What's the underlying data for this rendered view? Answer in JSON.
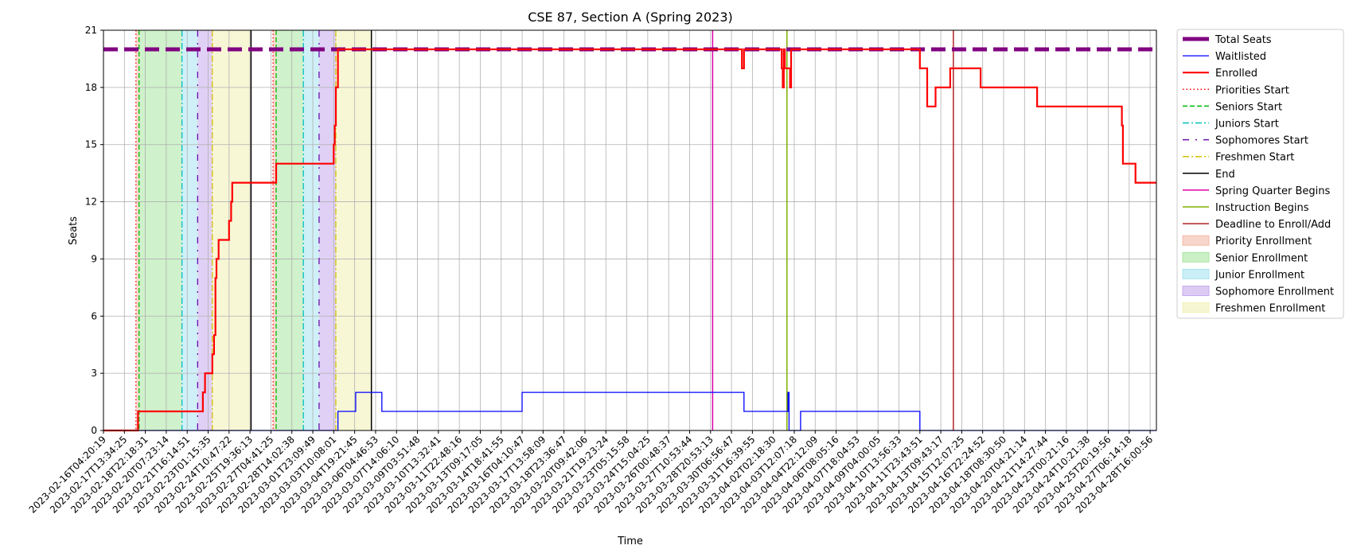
{
  "chart_data": {
    "type": "line",
    "title": "CSE 87, Section A (Spring 2023)",
    "xlabel": "Time",
    "ylabel": "Seats",
    "ylim": [
      0,
      21
    ],
    "yticks": [
      0,
      3,
      6,
      9,
      12,
      15,
      18,
      21
    ],
    "grid": true,
    "legend_position": "outside-right",
    "x_tick_labels": [
      "2023-02-16T04:20:19",
      "2023-02-17T13:34:25",
      "2023-02-18T22:18:31",
      "2023-02-20T07:23:14",
      "2023-02-21T16:14:51",
      "2023-02-23T01:15:35",
      "2023-02-24T10:47:22",
      "2023-02-25T19:36:13",
      "2023-02-27T04:41:25",
      "2023-02-28T14:02:38",
      "2023-03-01T23:09:49",
      "2023-03-03T10:08:01",
      "2023-03-04T19:21:45",
      "2023-03-06T04:46:53",
      "2023-03-07T14:06:10",
      "2023-03-09T03:51:48",
      "2023-03-10T13:32:41",
      "2023-03-11T22:48:16",
      "2023-03-13T09:17:05",
      "2023-03-14T18:41:55",
      "2023-03-16T04:10:47",
      "2023-03-17T13:58:09",
      "2023-03-18T23:36:47",
      "2023-03-20T09:42:06",
      "2023-03-21T19:23:24",
      "2023-03-23T05:15:58",
      "2023-03-24T15:04:25",
      "2023-03-26T00:48:37",
      "2023-03-27T10:53:44",
      "2023-03-28T20:53:13",
      "2023-03-30T06:56:47",
      "2023-03-31T16:39:55",
      "2023-04-02T02:18:30",
      "2023-04-03T12:07:18",
      "2023-04-04T22:12:09",
      "2023-04-06T08:05:16",
      "2023-04-07T18:04:53",
      "2023-04-09T04:00:05",
      "2023-04-10T13:56:33",
      "2023-04-11T23:43:51",
      "2023-04-13T09:43:17",
      "2023-04-15T12:07:25",
      "2023-04-16T22:24:52",
      "2023-04-18T08:30:50",
      "2023-04-20T04:21:14",
      "2023-04-21T14:27:44",
      "2023-04-23T00:21:16",
      "2023-04-24T10:21:38",
      "2023-04-25T20:19:56",
      "2023-04-27T06:14:18",
      "2023-04-28T16:00:56"
    ],
    "series": [
      {
        "name": "Total Seats",
        "color": "#800080",
        "style": "dashed-thick",
        "points": [
          [
            0,
            20
          ],
          [
            50.3,
            20
          ]
        ]
      },
      {
        "name": "Waitlisted",
        "color": "#0000ff",
        "style": "solid-thin",
        "points": [
          [
            0,
            0
          ],
          [
            11.2,
            0
          ],
          [
            11.2,
            1
          ],
          [
            12.05,
            1
          ],
          [
            12.05,
            2
          ],
          [
            13.3,
            2
          ],
          [
            13.3,
            1
          ],
          [
            20.0,
            1
          ],
          [
            20.0,
            2
          ],
          [
            30.6,
            2
          ],
          [
            30.6,
            1
          ],
          [
            32.7,
            1
          ],
          [
            32.7,
            2
          ],
          [
            32.75,
            2
          ],
          [
            32.75,
            0
          ],
          [
            33.3,
            0
          ],
          [
            33.3,
            1
          ],
          [
            39.0,
            1
          ],
          [
            39.0,
            0
          ],
          [
            50.3,
            0
          ]
        ]
      },
      {
        "name": "Enrolled",
        "color": "#ff0000",
        "style": "solid-thick",
        "points": [
          [
            0,
            0
          ],
          [
            1.65,
            0
          ],
          [
            1.65,
            1
          ],
          [
            4.75,
            1
          ],
          [
            4.75,
            2
          ],
          [
            4.85,
            2
          ],
          [
            4.85,
            3
          ],
          [
            5.2,
            3
          ],
          [
            5.2,
            4
          ],
          [
            5.28,
            4
          ],
          [
            5.28,
            5
          ],
          [
            5.35,
            5
          ],
          [
            5.35,
            8
          ],
          [
            5.4,
            8
          ],
          [
            5.4,
            9
          ],
          [
            5.5,
            9
          ],
          [
            5.5,
            10
          ],
          [
            6.0,
            10
          ],
          [
            6.0,
            11
          ],
          [
            6.1,
            11
          ],
          [
            6.1,
            12
          ],
          [
            6.15,
            12
          ],
          [
            6.15,
            13
          ],
          [
            8.25,
            13
          ],
          [
            8.25,
            14
          ],
          [
            11.0,
            14
          ],
          [
            11.0,
            15
          ],
          [
            11.05,
            15
          ],
          [
            11.05,
            16
          ],
          [
            11.1,
            16
          ],
          [
            11.1,
            18
          ],
          [
            11.2,
            18
          ],
          [
            11.2,
            20
          ],
          [
            30.5,
            20
          ],
          [
            30.5,
            19
          ],
          [
            30.6,
            19
          ],
          [
            30.6,
            20
          ],
          [
            32.4,
            20
          ],
          [
            32.4,
            19
          ],
          [
            32.45,
            19
          ],
          [
            32.45,
            18
          ],
          [
            32.5,
            18
          ],
          [
            32.5,
            20
          ],
          [
            32.55,
            20
          ],
          [
            32.55,
            19
          ],
          [
            32.8,
            19
          ],
          [
            32.8,
            18
          ],
          [
            32.85,
            18
          ],
          [
            32.85,
            20
          ],
          [
            39.0,
            20
          ],
          [
            39.0,
            19
          ],
          [
            39.35,
            19
          ],
          [
            39.35,
            17
          ],
          [
            39.75,
            17
          ],
          [
            39.75,
            18
          ],
          [
            40.45,
            18
          ],
          [
            40.45,
            19
          ],
          [
            41.9,
            19
          ],
          [
            41.9,
            18
          ],
          [
            44.6,
            18
          ],
          [
            44.6,
            17
          ],
          [
            48.65,
            17
          ],
          [
            48.65,
            16
          ],
          [
            48.7,
            16
          ],
          [
            48.7,
            14
          ],
          [
            49.3,
            14
          ],
          [
            49.3,
            13
          ],
          [
            50.3,
            13
          ]
        ]
      }
    ],
    "markers": [
      {
        "name": "Priorities Start",
        "color": "#ff0000",
        "style": "dotted",
        "x": [
          1.55,
          8.1
        ]
      },
      {
        "name": "Seniors Start",
        "color": "#00bb00",
        "style": "dashed",
        "x": [
          1.7,
          8.25
        ]
      },
      {
        "name": "Juniors Start",
        "color": "#00bfbf",
        "style": "dashdot",
        "x": [
          3.75,
          9.55
        ]
      },
      {
        "name": "Sophomores Start",
        "color": "#6a0dad",
        "style": "dashdot-loose",
        "x": [
          4.5,
          10.3
        ]
      },
      {
        "name": "Freshmen Start",
        "color": "#d4c000",
        "style": "dashdot",
        "x": [
          5.2,
          11.1
        ]
      },
      {
        "name": "End",
        "color": "#000000",
        "style": "solid",
        "x": [
          7.05,
          12.8
        ]
      },
      {
        "name": "Spring Quarter Begins",
        "color": "#dd00aa",
        "style": "solid",
        "x": [
          29.1
        ]
      },
      {
        "name": "Instruction Begins",
        "color": "#7fae00",
        "style": "solid",
        "x": [
          32.65
        ]
      },
      {
        "name": "Deadline to Enroll/Add",
        "color": "#b22222",
        "style": "solid",
        "x": [
          40.6
        ]
      }
    ],
    "shaded_regions": [
      {
        "name": "Priority Enrollment",
        "color": "#f4b9a8",
        "spans": [
          [
            1.55,
            1.7
          ],
          [
            8.1,
            8.25
          ]
        ]
      },
      {
        "name": "Senior Enrollment",
        "color": "#a8e6a0",
        "spans": [
          [
            1.7,
            3.75
          ],
          [
            8.25,
            9.55
          ]
        ]
      },
      {
        "name": "Junior Enrollment",
        "color": "#a8e4f0",
        "spans": [
          [
            3.75,
            4.5
          ],
          [
            9.55,
            10.3
          ]
        ]
      },
      {
        "name": "Sophomore Enrollment",
        "color": "#c6a9ec",
        "spans": [
          [
            4.5,
            5.2
          ],
          [
            10.3,
            11.1
          ]
        ]
      },
      {
        "name": "Freshmen Enrollment",
        "color": "#f0f0b4",
        "spans": [
          [
            5.2,
            7.05
          ],
          [
            11.1,
            12.8
          ]
        ]
      }
    ]
  }
}
